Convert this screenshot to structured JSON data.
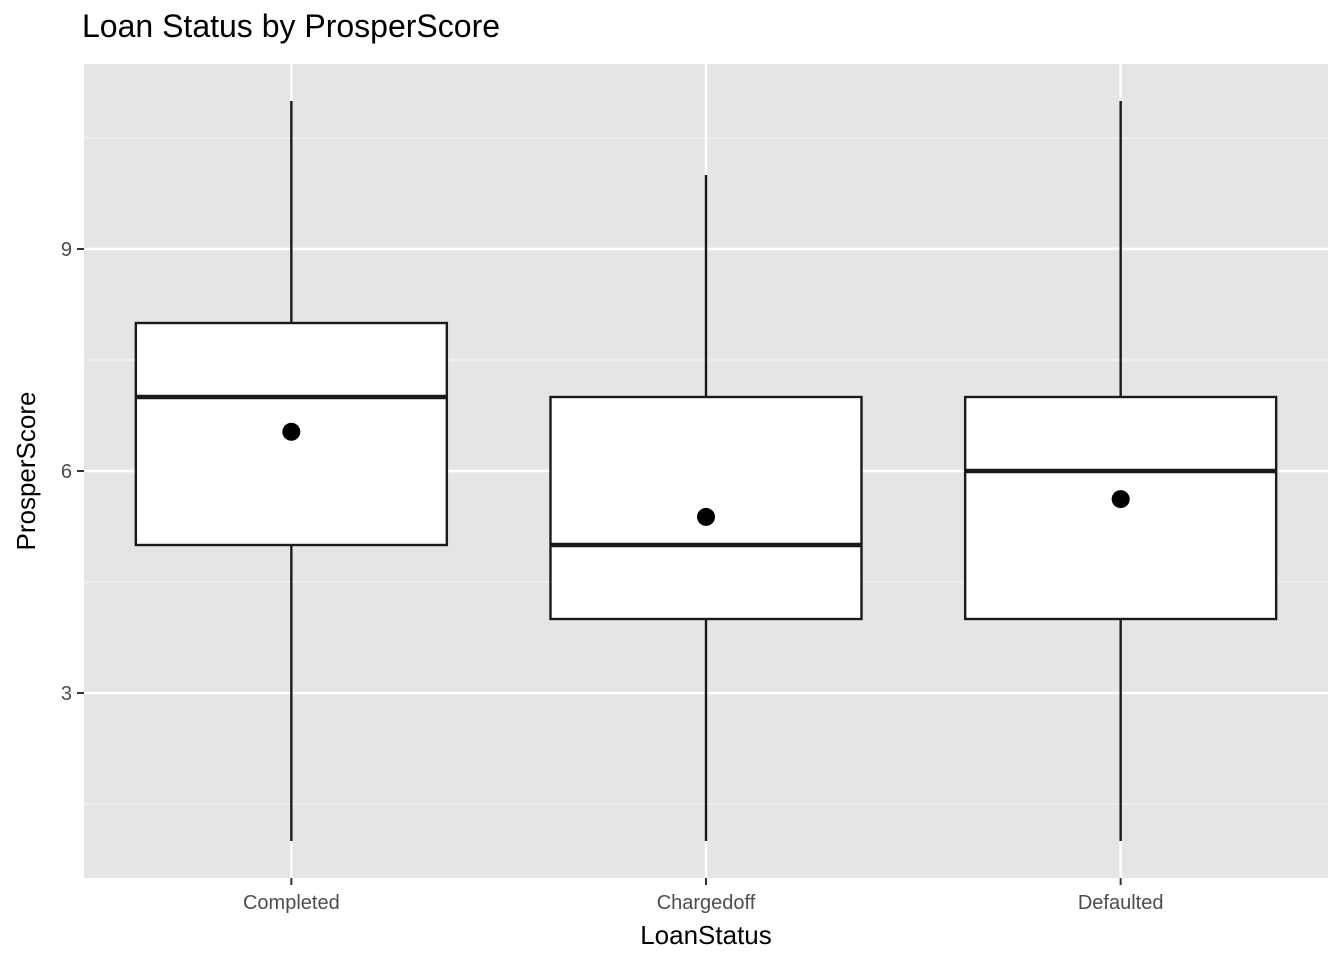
{
  "chart_data": {
    "type": "box",
    "title": "Loan Status by ProsperScore",
    "xlabel": "LoanStatus",
    "ylabel": "ProsperScore",
    "categories": [
      "Completed",
      "Chargedoff",
      "Defaulted"
    ],
    "boxes": [
      {
        "category": "Completed",
        "whisker_low": 1,
        "q1": 5,
        "median": 7,
        "q3": 8,
        "whisker_high": 11,
        "mean": 6.53
      },
      {
        "category": "Chargedoff",
        "whisker_low": 1,
        "q1": 4,
        "median": 5,
        "q3": 7,
        "whisker_high": 10,
        "mean": 5.38
      },
      {
        "category": "Defaulted",
        "whisker_low": 1,
        "q1": 4,
        "median": 6,
        "q3": 7,
        "whisker_high": 11,
        "mean": 5.62
      }
    ],
    "yticks": [
      3,
      6,
      9
    ],
    "ylim": [
      0.5,
      11.5
    ],
    "grid": true,
    "colors": {
      "panel_background": "#e5e5e5",
      "grid_major": "#ffffff",
      "grid_minor": "#f2f2f2",
      "box_fill": "#ffffff",
      "box_stroke": "#1a1a1a",
      "mean_point": "#000000"
    }
  }
}
